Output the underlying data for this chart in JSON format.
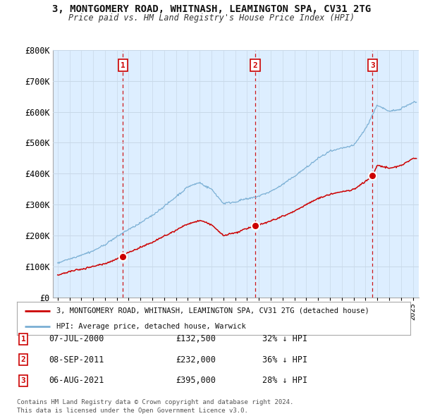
{
  "title": "3, MONTGOMERY ROAD, WHITNASH, LEAMINGTON SPA, CV31 2TG",
  "subtitle": "Price paid vs. HM Land Registry's House Price Index (HPI)",
  "ylim": [
    0,
    800000
  ],
  "yticks": [
    0,
    100000,
    200000,
    300000,
    400000,
    500000,
    600000,
    700000,
    800000
  ],
  "ytick_labels": [
    "£0",
    "£100K",
    "£200K",
    "£300K",
    "£400K",
    "£500K",
    "£600K",
    "£700K",
    "£800K"
  ],
  "hpi_color": "#7aafd4",
  "price_color": "#cc0000",
  "chart_bg": "#ddeeff",
  "vline_color": "#cc0000",
  "purchases": [
    {
      "index": 1,
      "date_num": 2000.52,
      "price": 132500,
      "label": "07-JUL-2000",
      "price_str": "£132,500",
      "hpi_str": "32% ↓ HPI"
    },
    {
      "index": 2,
      "date_num": 2011.68,
      "price": 232000,
      "label": "08-SEP-2011",
      "price_str": "£232,000",
      "hpi_str": "36% ↓ HPI"
    },
    {
      "index": 3,
      "date_num": 2021.59,
      "price": 395000,
      "label": "06-AUG-2021",
      "price_str": "£395,000",
      "hpi_str": "28% ↓ HPI"
    }
  ],
  "legend_entries": [
    "3, MONTGOMERY ROAD, WHITNASH, LEAMINGTON SPA, CV31 2TG (detached house)",
    "HPI: Average price, detached house, Warwick"
  ],
  "footer": "Contains HM Land Registry data © Crown copyright and database right 2024.\nThis data is licensed under the Open Government Licence v3.0.",
  "background_color": "#ffffff",
  "grid_color": "#c8d8e8",
  "hpi_waypoints_x": [
    1995,
    1996,
    1997,
    1998,
    1999,
    2000,
    2001,
    2002,
    2003,
    2004,
    2005,
    2006,
    2007,
    2008,
    2009,
    2010,
    2011,
    2012,
    2013,
    2014,
    2015,
    2016,
    2017,
    2018,
    2019,
    2020,
    2021,
    2022,
    2023,
    2024,
    2025
  ],
  "hpi_waypoints_y": [
    110000,
    125000,
    140000,
    155000,
    175000,
    200000,
    225000,
    245000,
    270000,
    300000,
    330000,
    360000,
    375000,
    350000,
    305000,
    310000,
    320000,
    330000,
    345000,
    365000,
    390000,
    420000,
    450000,
    470000,
    480000,
    490000,
    540000,
    620000,
    600000,
    610000,
    630000
  ],
  "red_waypoints_x": [
    1995,
    1996,
    1997,
    1998,
    1999,
    2000,
    2000.52,
    2001,
    2002,
    2003,
    2004,
    2005,
    2006,
    2007,
    2008,
    2009,
    2010,
    2011,
    2011.68,
    2012,
    2013,
    2014,
    2015,
    2016,
    2017,
    2018,
    2019,
    2020,
    2021,
    2021.59,
    2022,
    2023,
    2024,
    2025
  ],
  "red_waypoints_y": [
    72000,
    82000,
    90000,
    98000,
    108000,
    124000,
    132500,
    145000,
    160000,
    175000,
    195000,
    215000,
    235000,
    248000,
    235000,
    199000,
    208000,
    223000,
    232000,
    235000,
    248000,
    263000,
    280000,
    302000,
    324000,
    338000,
    345000,
    352000,
    378000,
    395000,
    430000,
    418000,
    428000,
    450000
  ]
}
